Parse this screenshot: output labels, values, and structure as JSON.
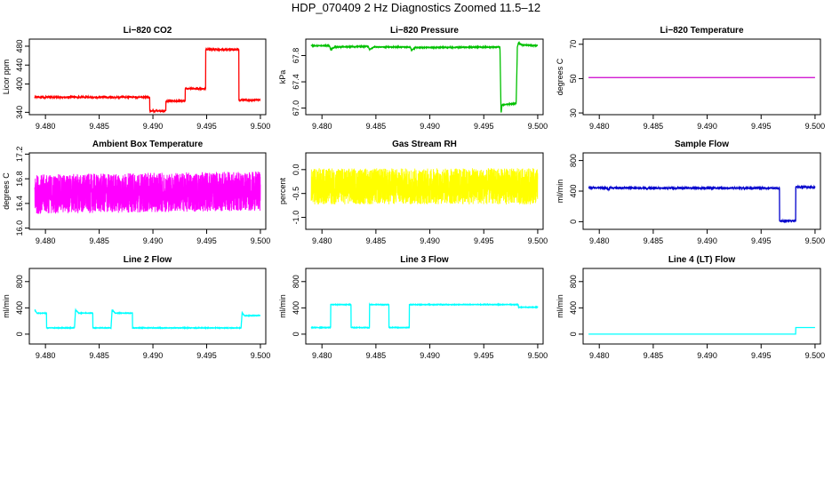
{
  "page": {
    "title": "HDP_070409  2 Hz Diagnostics Zoomed 11.5–12"
  },
  "chart_data": [
    {
      "type": "line",
      "title": "Li−820 CO2",
      "ylabel": "Licor ppm",
      "xlim": [
        9.4785,
        9.5005
      ],
      "ylim": [
        335,
        495
      ],
      "xticks": [
        "9.480",
        "9.485",
        "9.490",
        "9.495",
        "9.500"
      ],
      "yticks": [
        "340",
        "400",
        "440",
        "480"
      ],
      "color": "#ff0000",
      "noise": 1.5,
      "series": [
        {
          "x": [
            9.479,
            9.4897,
            9.4897,
            9.4912,
            9.4912,
            9.493,
            9.493,
            9.4949,
            9.4949,
            9.498,
            9.498,
            9.5
          ],
          "values": [
            372,
            372,
            343,
            343,
            364,
            364,
            390,
            390,
            473,
            473,
            366,
            366
          ]
        }
      ]
    },
    {
      "type": "line",
      "title": "Li−820 Pressure",
      "ylabel": "kPa",
      "xlim": [
        9.4785,
        9.5005
      ],
      "ylim": [
        66.9,
        68.05
      ],
      "xticks": [
        "9.480",
        "9.485",
        "9.490",
        "9.495",
        "9.500"
      ],
      "yticks": [
        "67.0",
        "67.4",
        "67.8"
      ],
      "color": "#00c000",
      "noise": 0.006,
      "series": [
        {
          "x": [
            9.479,
            9.4807,
            9.4808,
            9.4812,
            9.4843,
            9.4844,
            9.4848,
            9.4882,
            9.4883,
            9.4887,
            9.4965,
            9.4966,
            9.4967,
            9.498,
            9.4981,
            9.4981,
            9.4982,
            9.4986,
            9.5
          ],
          "values": [
            67.95,
            67.95,
            67.89,
            67.93,
            67.94,
            67.89,
            67.93,
            67.93,
            67.88,
            67.92,
            67.93,
            66.92,
            67.05,
            67.07,
            67.8,
            67.92,
            67.99,
            67.96,
            67.95
          ]
        }
      ]
    },
    {
      "type": "line",
      "title": "Li−820 Temperature",
      "ylabel": "degrees C",
      "xlim": [
        9.4785,
        9.5005
      ],
      "ylim": [
        29,
        73
      ],
      "xticks": [
        "9.480",
        "9.485",
        "9.490",
        "9.495",
        "9.500"
      ],
      "yticks": [
        "30",
        "50",
        "70"
      ],
      "color": "#cc00cc",
      "noise": 0,
      "series": [
        {
          "x": [
            9.479,
            9.5
          ],
          "values": [
            50.6,
            50.6
          ]
        }
      ]
    },
    {
      "type": "line",
      "title": "Ambient Box Temperature",
      "ylabel": "degrees C",
      "xlim": [
        9.4785,
        9.5005
      ],
      "ylim": [
        15.98,
        17.22
      ],
      "xticks": [
        "9.480",
        "9.485",
        "9.490",
        "9.495",
        "9.500"
      ],
      "yticks": [
        "16.0",
        "16.4",
        "16.8",
        "17.2"
      ],
      "color": "#ff00ff",
      "noise": 0.32,
      "dense": true,
      "series": [
        {
          "x": [
            9.479,
            9.5
          ],
          "values": [
            16.55,
            16.6
          ]
        }
      ]
    },
    {
      "type": "line",
      "title": "Gas Stream RH",
      "ylabel": "percent",
      "xlim": [
        9.4785,
        9.5005
      ],
      "ylim": [
        -1.25,
        0.35
      ],
      "xticks": [
        "9.480",
        "9.485",
        "9.490",
        "9.495",
        "9.500"
      ],
      "yticks": [
        "-1.0",
        "-0.5",
        "0.0"
      ],
      "color": "#ffff00",
      "noise": 0.38,
      "dense": true,
      "series": [
        {
          "x": [
            9.479,
            9.5
          ],
          "values": [
            -0.35,
            -0.35
          ]
        }
      ]
    },
    {
      "type": "line",
      "title": "Sample Flow",
      "ylabel": "ml/min",
      "xlim": [
        9.4785,
        9.5005
      ],
      "ylim": [
        -100,
        900
      ],
      "xticks": [
        "9.480",
        "9.485",
        "9.490",
        "9.495",
        "9.500"
      ],
      "yticks": [
        "0",
        "400",
        "800"
      ],
      "color": "#0000cc",
      "noise": 8,
      "series": [
        {
          "x": [
            9.479,
            9.4807,
            9.4808,
            9.481,
            9.4843,
            9.4844,
            9.4846,
            9.4967,
            9.4967,
            9.4982,
            9.4982,
            9.5
          ],
          "values": [
            445,
            440,
            420,
            442,
            440,
            425,
            440,
            440,
            10,
            10,
            455,
            450
          ]
        }
      ]
    },
    {
      "type": "line",
      "title": "Line 2 Flow",
      "ylabel": "ml/min",
      "xlim": [
        9.4785,
        9.5005
      ],
      "ylim": [
        -150,
        1000
      ],
      "xticks": [
        "9.480",
        "9.485",
        "9.490",
        "9.495",
        "9.500"
      ],
      "yticks": [
        "0",
        "400",
        "800"
      ],
      "color": "#00ffff",
      "noise": 4,
      "series": [
        {
          "x": [
            9.479,
            9.4792,
            9.4801,
            9.4801,
            9.4827,
            9.4828,
            9.4831,
            9.4844,
            9.4844,
            9.4861,
            9.4862,
            9.4865,
            9.4881,
            9.4881,
            9.4982,
            9.4983,
            9.4985,
            9.5
          ],
          "values": [
            370,
            320,
            320,
            95,
            95,
            370,
            320,
            320,
            95,
            95,
            370,
            320,
            320,
            95,
            95,
            330,
            280,
            285
          ]
        }
      ]
    },
    {
      "type": "line",
      "title": "Line 3 Flow",
      "ylabel": "ml/min",
      "xlim": [
        9.4785,
        9.5005
      ],
      "ylim": [
        -150,
        1000
      ],
      "xticks": [
        "9.480",
        "9.485",
        "9.490",
        "9.495",
        "9.500"
      ],
      "yticks": [
        "0",
        "400",
        "800"
      ],
      "color": "#00ffff",
      "noise": 4,
      "series": [
        {
          "x": [
            9.479,
            9.4808,
            9.4808,
            9.4827,
            9.4827,
            9.4844,
            9.4844,
            9.4862,
            9.4862,
            9.4881,
            9.4881,
            9.4982,
            9.4982,
            9.5
          ],
          "values": [
            100,
            100,
            450,
            450,
            100,
            100,
            450,
            450,
            100,
            100,
            450,
            450,
            410,
            410
          ]
        }
      ]
    },
    {
      "type": "line",
      "title": "Line 4 (LT) Flow",
      "ylabel": "ml/min",
      "xlim": [
        9.4785,
        9.5005
      ],
      "ylim": [
        -150,
        1000
      ],
      "xticks": [
        "9.480",
        "9.485",
        "9.490",
        "9.495",
        "9.500"
      ],
      "yticks": [
        "0",
        "400",
        "800"
      ],
      "color": "#00ffff",
      "noise": 0,
      "series": [
        {
          "x": [
            9.479,
            9.4982,
            9.4982,
            9.5
          ],
          "values": [
            0,
            0,
            100,
            100
          ]
        }
      ]
    }
  ]
}
